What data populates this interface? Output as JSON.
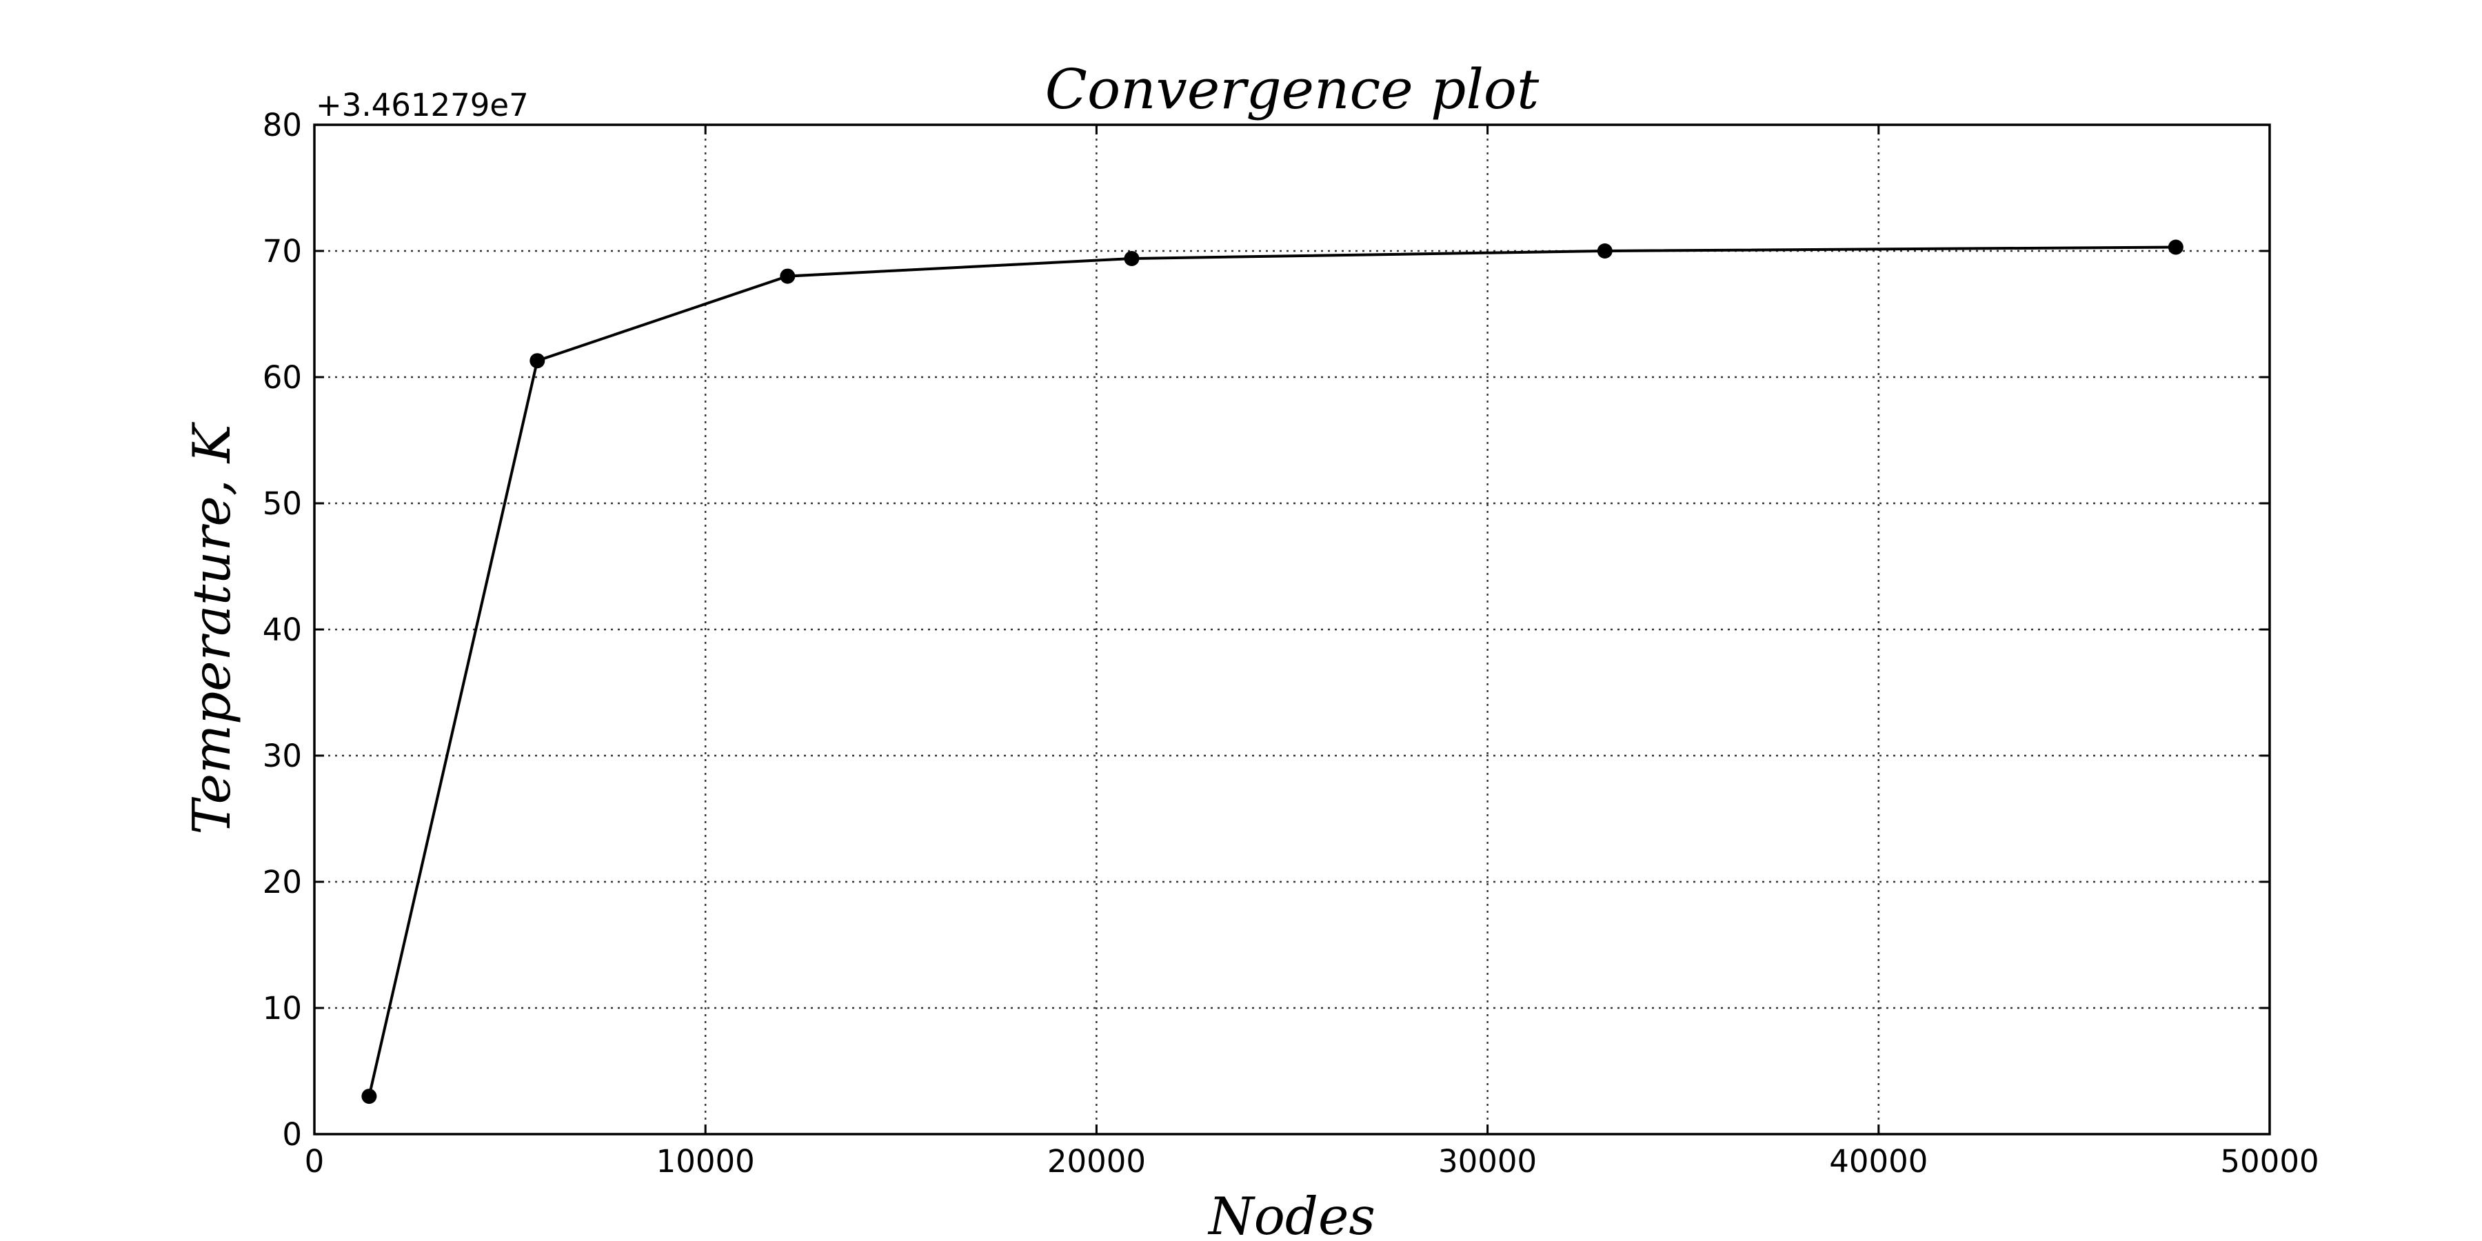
{
  "chart_data": {
    "type": "line",
    "title": "Convergence plot",
    "xlabel": "Nodes",
    "ylabel": "Temperature, K",
    "y_offset_label": "+3.461279e7",
    "xlim": [
      0,
      50000
    ],
    "ylim": [
      0,
      80
    ],
    "xticks": [
      0,
      10000,
      20000,
      30000,
      40000,
      50000
    ],
    "yticks": [
      0,
      10,
      20,
      30,
      40,
      50,
      60,
      70,
      80
    ],
    "grid": true,
    "series": [
      {
        "color": "#000000",
        "marker": "circle",
        "x": [
          1400,
          5700,
          12100,
          20900,
          33000,
          47600
        ],
        "y": [
          3.0,
          61.3,
          68.0,
          69.4,
          70.0,
          70.3
        ]
      }
    ]
  }
}
